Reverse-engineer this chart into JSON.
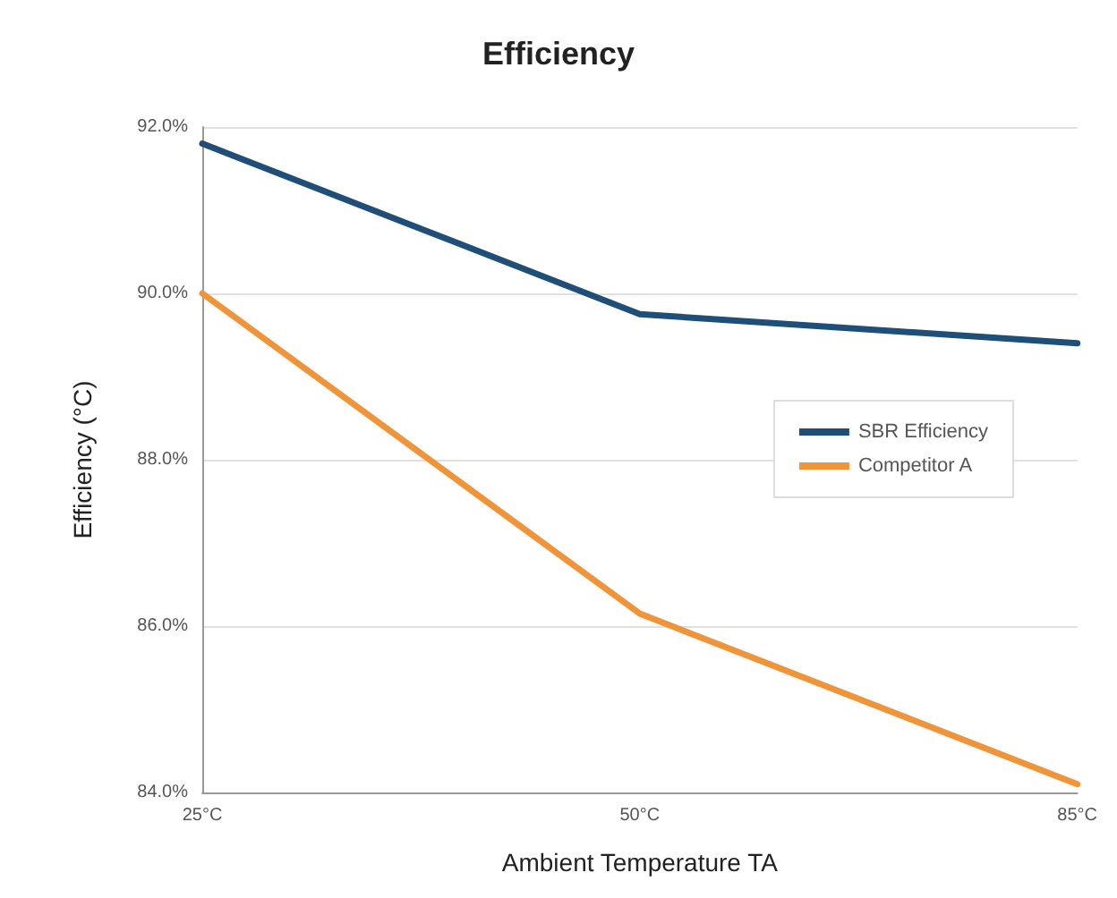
{
  "chart_data": {
    "type": "line",
    "title": "Efficiency",
    "xlabel": "Ambient Temperature TA",
    "ylabel": "Efficiency (°C)",
    "categories": [
      "25°C",
      "50°C",
      "85°C"
    ],
    "series": [
      {
        "name": "SBR Efficiency",
        "color": "#1f4e79",
        "values": [
          91.8,
          89.75,
          89.4
        ]
      },
      {
        "name": "Competitor A",
        "color": "#f0943a",
        "values": [
          90.0,
          86.15,
          84.1
        ]
      }
    ],
    "ylim": [
      84,
      92
    ],
    "yticks": [
      {
        "value": 84,
        "label": "84.0%"
      },
      {
        "value": 86,
        "label": "86.0%"
      },
      {
        "value": 88,
        "label": "88.0%"
      },
      {
        "value": 90,
        "label": "90.0%"
      },
      {
        "value": 92,
        "label": "92.0%"
      }
    ],
    "grid": "y",
    "legend": "right",
    "marker": "none",
    "line_style": "solid"
  }
}
